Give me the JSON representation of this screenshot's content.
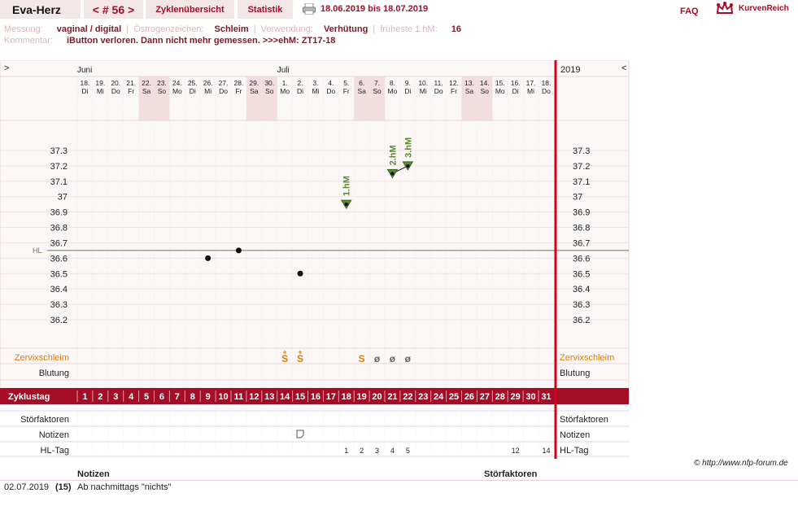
{
  "header": {
    "brand": "Eva-Herz",
    "cycle_nav": "< # 56 >",
    "tab_overview": "Zyklenübersicht",
    "tab_stats": "Statistik",
    "date_range": "18.06.2019 bis 18.07.2019",
    "faq": "FAQ",
    "logo_text": "KurvenReich"
  },
  "meta": {
    "messung_label": "Messung:",
    "messung_value": "vaginal / digital",
    "oestrogen_label": "Östrogenzeichen:",
    "oestrogen_value": "Schleim",
    "verwendung_label": "Verwendung:",
    "verwendung_value": "Verhütung",
    "fruehest_label": "früheste 1.hM:",
    "fruehest_value": "16",
    "kommentar_label": "Kommentar:",
    "kommentar_value": "iButton verloren. Dann nicht mehr gemessen. >>>ehM: ZT17-18"
  },
  "colors": {
    "accent": "#a40d25",
    "weekend": "#f2dede",
    "grid": "#ead6d6",
    "hl_line": "#5b8a2f",
    "mucus": "#e07b00",
    "hm": "#5b8a2f"
  },
  "chart_data": {
    "type": "scatter",
    "nav_left": ">",
    "nav_right": "<",
    "year": "2019",
    "months": [
      {
        "label": "Juni",
        "at_day": 1
      },
      {
        "label": "Juli",
        "at_day": 14
      }
    ],
    "dates": [
      "18.",
      "19.",
      "20.",
      "21.",
      "22.",
      "23.",
      "24.",
      "25.",
      "26.",
      "27.",
      "28.",
      "29.",
      "30.",
      "1.",
      "2.",
      "3.",
      "4.",
      "5.",
      "6.",
      "7.",
      "8.",
      "9.",
      "10.",
      "11.",
      "12.",
      "13.",
      "14.",
      "15.",
      "16.",
      "17.",
      "18."
    ],
    "weekdays": [
      "Di",
      "Mi",
      "Do",
      "Fr",
      "Sa",
      "So",
      "Mo",
      "Di",
      "Mi",
      "Do",
      "Fr",
      "Sa",
      "So",
      "Mo",
      "Di",
      "Mi",
      "Do",
      "Fr",
      "Sa",
      "So",
      "Mo",
      "Di",
      "Mi",
      "Do",
      "Fr",
      "Sa",
      "So",
      "Mo",
      "Di",
      "Mi",
      "Do"
    ],
    "weekend_days": [
      5,
      6,
      12,
      13,
      19,
      20,
      26,
      27
    ],
    "cycle_days": [
      1,
      2,
      3,
      4,
      5,
      6,
      7,
      8,
      9,
      10,
      11,
      12,
      13,
      14,
      15,
      16,
      17,
      18,
      19,
      20,
      21,
      22,
      23,
      24,
      25,
      26,
      27,
      28,
      29,
      30,
      31
    ],
    "temp_ticks": [
      "37.3",
      "37.2",
      "37.1",
      "37",
      "36.9",
      "36.8",
      "36.7",
      "36.6",
      "36.5",
      "36.4",
      "36.3",
      "36.2"
    ],
    "ylim": [
      36.2,
      37.3
    ],
    "hl_label": "HL",
    "hl_value": 36.65,
    "temperatures": [
      {
        "day": 9,
        "value": 36.6,
        "style": "dot"
      },
      {
        "day": 11,
        "value": 36.65,
        "style": "dot"
      },
      {
        "day": 15,
        "value": 36.5,
        "style": "dot"
      },
      {
        "day": 18,
        "value": 36.95,
        "style": "triangle",
        "label": "1.hM"
      },
      {
        "day": 21,
        "value": 37.15,
        "style": "triangle",
        "label": "2.hM"
      },
      {
        "day": 22,
        "value": 37.2,
        "style": "triangle",
        "label": "3.hM"
      }
    ],
    "connected": [
      [
        21,
        22
      ]
    ],
    "rows": {
      "cervix_label": "Zervixschleim",
      "cervix": [
        {
          "day": 14,
          "symbol": "S",
          "plus": "+"
        },
        {
          "day": 15,
          "symbol": "S",
          "plus": "+"
        },
        {
          "day": 19,
          "symbol": "S",
          "plus": ""
        },
        {
          "day": 20,
          "symbol": "ø",
          "plus": ""
        },
        {
          "day": 21,
          "symbol": "ø",
          "plus": ""
        },
        {
          "day": 22,
          "symbol": "ø",
          "plus": ""
        }
      ],
      "bleeding_label": "Blutung",
      "cycleday_label": "Zyklustag",
      "disturb_label": "Störfaktoren",
      "notes_label": "Notizen",
      "note_days": [
        15
      ],
      "hl_day_label": "HL-Tag",
      "hl_days": [
        {
          "day": 18,
          "n": "1"
        },
        {
          "day": 19,
          "n": "2"
        },
        {
          "day": 20,
          "n": "3"
        },
        {
          "day": 21,
          "n": "4"
        },
        {
          "day": 22,
          "n": "5"
        },
        {
          "day": 29,
          "n": "12"
        },
        {
          "day": 31,
          "n": "14"
        }
      ]
    }
  },
  "footer": {
    "copyright": "© http://www.nfp-forum.de",
    "notes_header": "Notizen",
    "disturb_header": "Störfaktoren",
    "note_date": "02.07.2019",
    "note_day": "(15)",
    "note_text": "Ab nachmittags \"nichts\""
  }
}
